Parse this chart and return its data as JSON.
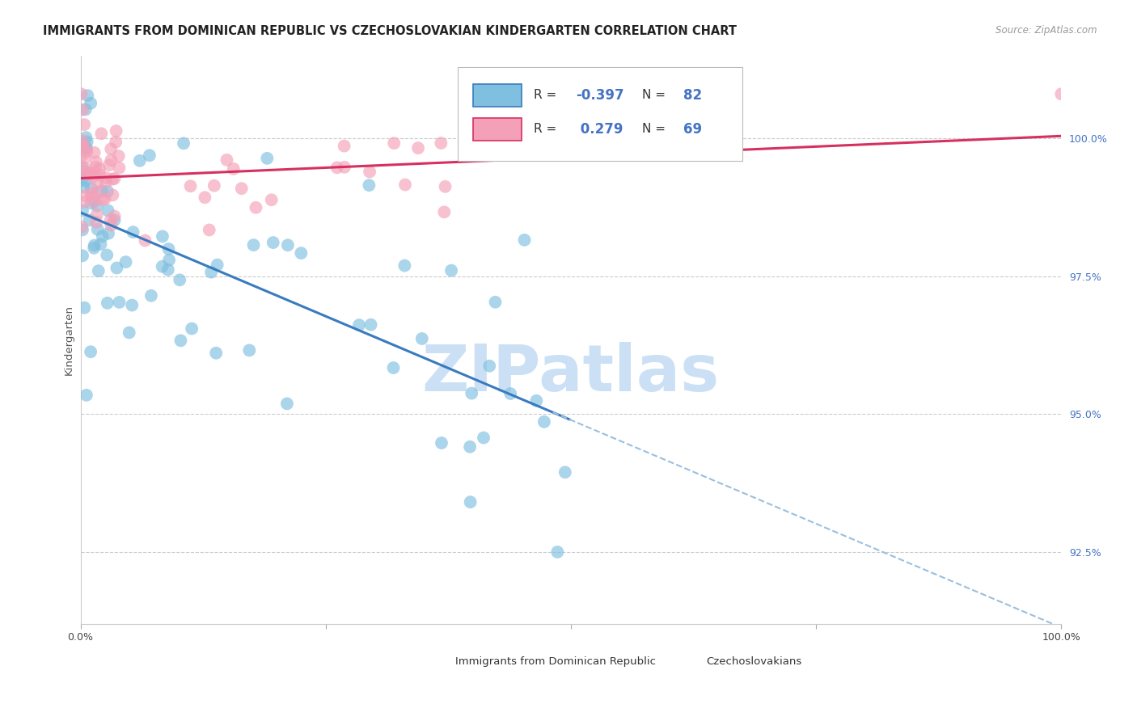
{
  "title": "IMMIGRANTS FROM DOMINICAN REPUBLIC VS CZECHOSLOVAKIAN KINDERGARTEN CORRELATION CHART",
  "source": "Source: ZipAtlas.com",
  "ylabel": "Kindergarten",
  "xmin": 0.0,
  "xmax": 100.0,
  "ymin": 91.2,
  "ymax": 101.5,
  "blue_color": "#7fbfdf",
  "pink_color": "#f4a0b8",
  "blue_line_color": "#3a7bbf",
  "pink_line_color": "#d63060",
  "dashed_line_color": "#9abfdf",
  "grid_color": "#cccccc",
  "background_color": "#ffffff",
  "ytick_positions": [
    92.5,
    95.0,
    97.5,
    100.0
  ],
  "ytick_labels": [
    "92.5%",
    "95.0%",
    "97.5%",
    "100.0%"
  ],
  "ytick_color": "#4472c4",
  "title_fontsize": 10.5,
  "tick_fontsize": 9,
  "legend_blue_r": "-0.397",
  "legend_blue_n": "82",
  "legend_pink_r": "0.279",
  "legend_pink_n": "69",
  "watermark": "ZIPatlas",
  "watermark_color": "#cce0f5"
}
